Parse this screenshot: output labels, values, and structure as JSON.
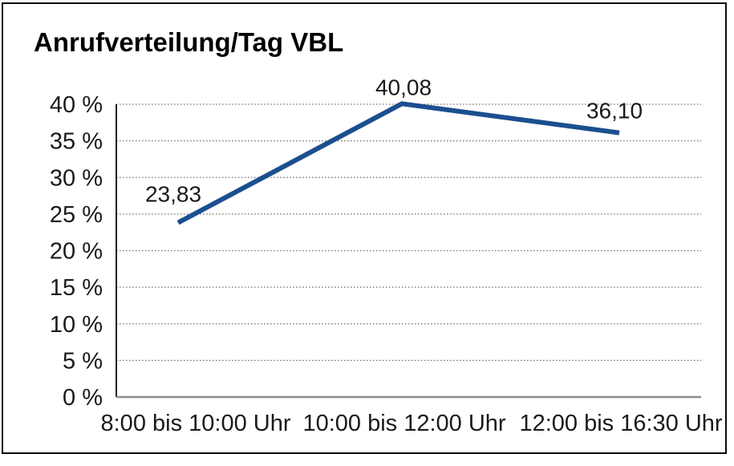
{
  "page": {
    "background": "#ffffff",
    "frame_border_color": "#0a0a0a"
  },
  "chart_data": {
    "type": "line",
    "title": "Anrufverteilung/Tag VBL",
    "categories": [
      "8:00 bis 10:00 Uhr",
      "10:00 bis 12:00 Uhr",
      "12:00 bis 16:30 Uhr"
    ],
    "series": [
      {
        "values": [
          23.83,
          40.08,
          36.1
        ],
        "point_labels": [
          "23,83",
          "40,08",
          "36,10"
        ],
        "color": "#1b4f8f"
      }
    ],
    "xlabel": "",
    "ylabel": "",
    "ylim": [
      0,
      40
    ],
    "ytick_step": 5,
    "ytick_labels": [
      "0 %",
      "5 %",
      "10 %",
      "15 %",
      "20 %",
      "25 %",
      "30 %",
      "35 %",
      "40 %"
    ],
    "grid": "horizontal-dotted",
    "gridline_color": "#777777",
    "yaxis_color": "#222222",
    "xaxis_color": "#8c8c8c",
    "legend": "none"
  }
}
